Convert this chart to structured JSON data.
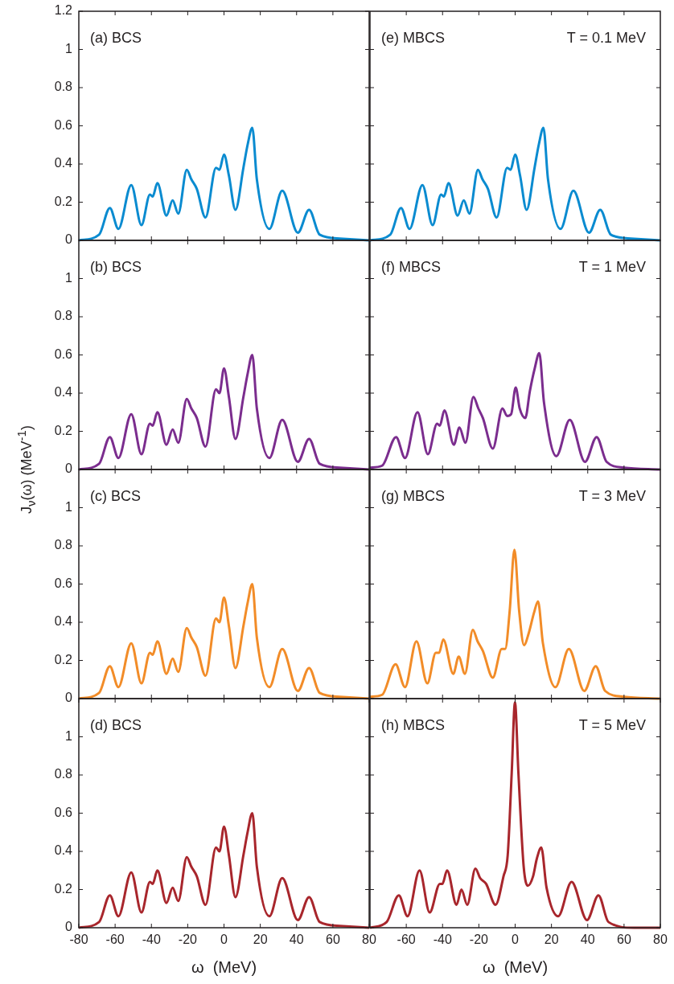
{
  "chart_data": [
    {
      "type": "line",
      "annotations": [
        "(a) BCS"
      ],
      "xlim": [
        -80,
        80
      ],
      "xticks": [
        -60,
        -40,
        -20,
        0,
        20,
        40,
        60
      ],
      "ylim": [
        0,
        1.2
      ],
      "yticks": [
        0,
        0.2,
        0.4,
        0.6,
        0.8,
        1,
        1.2
      ],
      "tick_labels": "y",
      "x": [
        -80,
        -68.8,
        -62.9,
        -58.2,
        -51.1,
        -45.5,
        -40.8,
        -39.3,
        -36.7,
        -31.7,
        -28.3,
        -25.2,
        -20.5,
        -18,
        -15,
        -10.2,
        -4.4,
        -2.5,
        0,
        2.7,
        6.3,
        10.7,
        13,
        15.6,
        18.1,
        25,
        32.1,
        40.7,
        46.9,
        52.7,
        63.8,
        80
      ],
      "series": [
        {
          "color": "#0a8bd0",
          "values": [
            0,
            0.03,
            0.17,
            0.06,
            0.29,
            0.08,
            0.24,
            0.23,
            0.3,
            0.13,
            0.21,
            0.14,
            0.37,
            0.32,
            0.27,
            0.12,
            0.38,
            0.37,
            0.45,
            0.34,
            0.16,
            0.38,
            0.5,
            0.59,
            0.32,
            0.06,
            0.26,
            0.04,
            0.16,
            0.03,
            0.01,
            0
          ]
        }
      ]
    },
    {
      "type": "line",
      "annotations": [
        "(b) BCS"
      ],
      "ylabel": "J$_{ν}$(ω)  (MeV$^{-1}$)",
      "xlim": [
        -80,
        80
      ],
      "xticks": [
        -60,
        -40,
        -20,
        0,
        20,
        40,
        60
      ],
      "ylim": [
        0,
        1.2
      ],
      "yticks": [
        0,
        0.2,
        0.4,
        0.6,
        0.8,
        1
      ],
      "tick_labels": "y",
      "x": [
        -80,
        -68.8,
        -62.9,
        -58.2,
        -51.1,
        -45.5,
        -40.8,
        -39.3,
        -36.7,
        -31.7,
        -28.3,
        -25.2,
        -20.5,
        -18,
        -15,
        -10.2,
        -4.4,
        -2.5,
        0,
        2.7,
        6.3,
        10.7,
        13,
        15.6,
        18.1,
        25,
        32.1,
        40.7,
        46.9,
        52.7,
        63.8,
        80
      ],
      "series": [
        {
          "color": "#7b2d8e",
          "values": [
            0,
            0.03,
            0.17,
            0.06,
            0.29,
            0.08,
            0.24,
            0.23,
            0.3,
            0.13,
            0.21,
            0.14,
            0.37,
            0.32,
            0.27,
            0.12,
            0.42,
            0.4,
            0.53,
            0.38,
            0.16,
            0.38,
            0.5,
            0.6,
            0.32,
            0.06,
            0.26,
            0.04,
            0.16,
            0.03,
            0.01,
            0
          ]
        }
      ]
    },
    {
      "type": "line",
      "annotations": [
        "(c) BCS"
      ],
      "xlim": [
        -80,
        80
      ],
      "xticks": [
        -60,
        -40,
        -20,
        0,
        20,
        40,
        60
      ],
      "ylim": [
        0,
        1.2
      ],
      "yticks": [
        0,
        0.2,
        0.4,
        0.6,
        0.8,
        1
      ],
      "tick_labels": "y",
      "x": [
        -80,
        -68.8,
        -62.9,
        -58.2,
        -51.1,
        -45.5,
        -40.8,
        -39.3,
        -36.7,
        -31.7,
        -28.3,
        -25.2,
        -20.5,
        -18,
        -15,
        -10.2,
        -4.4,
        -2.5,
        0,
        2.7,
        6.3,
        10.7,
        13,
        15.6,
        18.1,
        25,
        32.1,
        40.7,
        46.9,
        52.7,
        63.8,
        80
      ],
      "series": [
        {
          "color": "#f28c28",
          "values": [
            0,
            0.03,
            0.17,
            0.06,
            0.29,
            0.08,
            0.24,
            0.23,
            0.3,
            0.13,
            0.21,
            0.14,
            0.37,
            0.32,
            0.27,
            0.12,
            0.42,
            0.4,
            0.53,
            0.38,
            0.16,
            0.38,
            0.5,
            0.6,
            0.32,
            0.06,
            0.26,
            0.04,
            0.16,
            0.03,
            0.01,
            0
          ]
        }
      ]
    },
    {
      "type": "line",
      "annotations": [
        "(d) BCS"
      ],
      "xlabel": "ω  (MeV)",
      "xlim": [
        -80,
        80
      ],
      "xticks": [
        -80,
        -60,
        -40,
        -20,
        0,
        20,
        40,
        60,
        80
      ],
      "ylim": [
        0,
        1.2
      ],
      "yticks": [
        0,
        0.2,
        0.4,
        0.6,
        0.8,
        1
      ],
      "x": [
        -80,
        -68.8,
        -62.9,
        -58.2,
        -51.1,
        -45.5,
        -40.8,
        -39.3,
        -36.7,
        -31.7,
        -28.3,
        -25.2,
        -20.5,
        -18,
        -15,
        -10.2,
        -4.4,
        -2.5,
        0,
        2.7,
        6.3,
        10.7,
        13,
        15.6,
        18.1,
        25,
        32.1,
        40.7,
        46.9,
        52.7,
        63.8,
        80
      ],
      "series": [
        {
          "color": "#a8262c",
          "values": [
            0,
            0.03,
            0.17,
            0.06,
            0.29,
            0.08,
            0.24,
            0.23,
            0.3,
            0.13,
            0.21,
            0.14,
            0.37,
            0.32,
            0.27,
            0.12,
            0.42,
            0.4,
            0.53,
            0.38,
            0.16,
            0.38,
            0.5,
            0.6,
            0.32,
            0.06,
            0.26,
            0.04,
            0.16,
            0.03,
            0.01,
            0
          ]
        }
      ]
    },
    {
      "type": "line",
      "annotations": [
        "(e) MBCS",
        "T = 0.1 MeV"
      ],
      "xlim": [
        -80,
        80
      ],
      "xticks": [
        -60,
        -40,
        -20,
        0,
        20,
        40,
        60
      ],
      "ylim": [
        0,
        1.2
      ],
      "yticks": [
        0,
        0.2,
        0.4,
        0.6,
        0.8,
        1
      ],
      "tick_labels": false,
      "x": [
        -80,
        -68.8,
        -62.9,
        -58.2,
        -51.1,
        -45.5,
        -40.8,
        -39.3,
        -36.7,
        -31.7,
        -28.3,
        -25.2,
        -20.5,
        -18,
        -15,
        -10.2,
        -4.4,
        -2.5,
        0,
        2.7,
        6.3,
        10.7,
        13,
        15.6,
        18.1,
        25,
        32.1,
        40.7,
        46.9,
        52.7,
        63.8,
        80
      ],
      "series": [
        {
          "color": "#0a8bd0",
          "values": [
            0,
            0.03,
            0.17,
            0.06,
            0.29,
            0.08,
            0.24,
            0.23,
            0.3,
            0.13,
            0.21,
            0.14,
            0.37,
            0.32,
            0.27,
            0.12,
            0.38,
            0.37,
            0.45,
            0.34,
            0.16,
            0.38,
            0.5,
            0.59,
            0.32,
            0.06,
            0.26,
            0.04,
            0.16,
            0.03,
            0.01,
            0
          ]
        }
      ]
    },
    {
      "type": "line",
      "annotations": [
        "(f) MBCS",
        "T = 1 MeV"
      ],
      "xlim": [
        -80,
        80
      ],
      "xticks": [
        -60,
        -40,
        -20,
        0,
        20,
        40,
        60
      ],
      "ylim": [
        0,
        1.2
      ],
      "yticks": [
        0,
        0.2,
        0.4,
        0.6,
        0.8,
        1
      ],
      "tick_labels": false,
      "x": [
        -80,
        -73.3,
        -65.6,
        -60.7,
        -53.8,
        -48.1,
        -43,
        -41.5,
        -39,
        -33.8,
        -30.7,
        -27.4,
        -23,
        -20.3,
        -17.8,
        -12.3,
        -7,
        -4.4,
        -2.2,
        0.3,
        2.5,
        5.6,
        8.1,
        10.8,
        13.3,
        15.9,
        22.7,
        30.1,
        38.5,
        44.9,
        50.4,
        60,
        80
      ],
      "series": [
        {
          "color": "#7b2d8e",
          "values": [
            0.01,
            0.02,
            0.17,
            0.06,
            0.3,
            0.08,
            0.24,
            0.23,
            0.31,
            0.13,
            0.22,
            0.14,
            0.38,
            0.32,
            0.27,
            0.11,
            0.32,
            0.28,
            0.29,
            0.43,
            0.32,
            0.27,
            0.41,
            0.53,
            0.61,
            0.35,
            0.07,
            0.26,
            0.04,
            0.17,
            0.04,
            0.01,
            0
          ]
        }
      ]
    },
    {
      "type": "line",
      "annotations": [
        "(g) MBCS",
        "T = 3 MeV"
      ],
      "xlim": [
        -80,
        80
      ],
      "xticks": [
        -60,
        -40,
        -20,
        0,
        20,
        40,
        60
      ],
      "ylim": [
        0,
        1.2
      ],
      "yticks": [
        0,
        0.2,
        0.4,
        0.6,
        0.8,
        1
      ],
      "tick_labels": false,
      "x": [
        -80,
        -73.3,
        -65.9,
        -60.7,
        -54.4,
        -48.4,
        -43.7,
        -41.9,
        -39.6,
        -34.1,
        -31.1,
        -27.7,
        -23.3,
        -20.7,
        -17.8,
        -12.3,
        -7.4,
        -5.5,
        -3,
        -0.4,
        2.2,
        4.9,
        7.4,
        10.4,
        12.6,
        15.3,
        22.2,
        29.6,
        38.1,
        44.4,
        49.6,
        60,
        80
      ],
      "series": [
        {
          "color": "#f28c28",
          "values": [
            0.01,
            0.02,
            0.18,
            0.06,
            0.3,
            0.08,
            0.24,
            0.24,
            0.31,
            0.13,
            0.22,
            0.13,
            0.36,
            0.3,
            0.25,
            0.11,
            0.26,
            0.26,
            0.46,
            0.78,
            0.46,
            0.28,
            0.34,
            0.45,
            0.51,
            0.29,
            0.06,
            0.26,
            0.04,
            0.17,
            0.04,
            0.01,
            0
          ]
        }
      ]
    },
    {
      "type": "line",
      "annotations": [
        "(h) MBCS",
        "T = 5 MeV"
      ],
      "xlabel": "ω  (MeV)",
      "xlim": [
        -80,
        80
      ],
      "xticks": [
        -60,
        -40,
        -20,
        0,
        20,
        40,
        60,
        80
      ],
      "ylim": [
        0,
        1.2
      ],
      "yticks": [
        0,
        0.2,
        0.4,
        0.6,
        0.8,
        1
      ],
      "tick_labels": "x",
      "x": [
        -80,
        -70.8,
        -64.1,
        -59.3,
        -52.7,
        -47.1,
        -41.5,
        -40.1,
        -37.5,
        -32.3,
        -29.6,
        -26.4,
        -21.9,
        -19.3,
        -16,
        -10.8,
        -6.4,
        -4.1,
        -1.9,
        -0.1,
        1.8,
        4.7,
        7,
        9.9,
        11.9,
        14.4,
        17.3,
        23.7,
        31.1,
        39.6,
        45.9,
        51.4,
        65.5,
        80
      ],
      "series": [
        {
          "color": "#a8262c",
          "values": [
            0,
            0.03,
            0.17,
            0.06,
            0.3,
            0.08,
            0.23,
            0.23,
            0.3,
            0.12,
            0.2,
            0.12,
            0.31,
            0.26,
            0.23,
            0.12,
            0.27,
            0.38,
            0.81,
            1.18,
            0.81,
            0.32,
            0.22,
            0.27,
            0.36,
            0.42,
            0.21,
            0.06,
            0.24,
            0.04,
            0.17,
            0.03,
            0,
            0
          ]
        }
      ]
    }
  ]
}
